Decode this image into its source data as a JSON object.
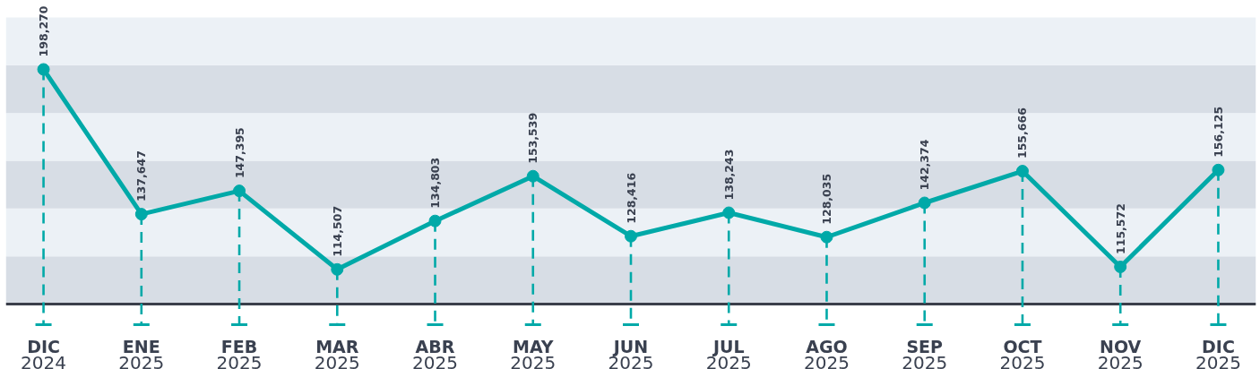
{
  "chart_data": {
    "type": "line",
    "categories": [
      "DIC\n2024",
      "ENE\n2025",
      "FEB\n2025",
      "MAR\n2025",
      "ABR\n2025",
      "MAY\n2025",
      "JUN\n2025",
      "JUL\n2025",
      "AGO\n2025",
      "SEP\n2025",
      "OCT\n2025",
      "NOV\n2025",
      "DIC\n2025"
    ],
    "series": [
      {
        "color": "#00a9a8",
        "values": [
          198270,
          137647,
          147395,
          114507,
          134803,
          153539,
          128416,
          138243,
          128035,
          142374,
          155666,
          115572,
          156125
        ],
        "value_labels": [
          "198,270",
          "137,647",
          "147,395",
          "114,507",
          "134,803",
          "153,539",
          "128,416",
          "138,243",
          "128,035",
          "142,374",
          "155,666",
          "115,572",
          "156,125"
        ]
      }
    ],
    "tick_labels": "x",
    "marker": "circle",
    "line_style": "solid",
    "grid": "x",
    "bands": [
      {
        "axis": "y",
        "from": 100000,
        "to": 120000,
        "color": "#d7dde5"
      },
      {
        "axis": "y",
        "from": 120000,
        "to": 140000,
        "color": "#ecf1f6"
      },
      {
        "axis": "y",
        "from": 140000,
        "to": 160000,
        "color": "#d7dde5"
      },
      {
        "axis": "y",
        "from": 160000,
        "to": 180000,
        "color": "#ecf1f6"
      },
      {
        "axis": "y",
        "from": 180000,
        "to": 200000,
        "color": "#d7dde5"
      },
      {
        "axis": "y",
        "from": 200000,
        "to": 220000,
        "color": "#ecf1f6"
      }
    ]
  }
}
